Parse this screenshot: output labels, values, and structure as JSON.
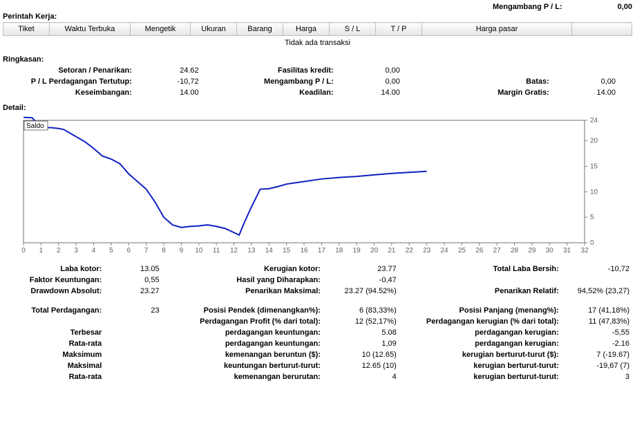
{
  "top": {
    "floatingPL_label": "Mengambang P / L:",
    "floatingPL_value": "0,00"
  },
  "workOrders": {
    "title": "Perintah Kerja:",
    "columns": [
      "Tiket",
      "Waktu Terbuka",
      "Mengetik",
      "Ukuran",
      "Barang",
      "Harga",
      "S / L",
      "T / P",
      "Harga pasar"
    ],
    "noTransactions": "Tidak ada transaksi"
  },
  "summary": {
    "title": "Ringkasan:",
    "rows": [
      [
        {
          "label": "Setoran / Penarikan:",
          "value": "24.62"
        },
        {
          "label": "Fasilitas kredit:",
          "value": "0,00"
        },
        {
          "label": "",
          "value": ""
        }
      ],
      [
        {
          "label": "P / L Perdagangan Tertutup:",
          "value": "-10,72"
        },
        {
          "label": "Mengambang P / L:",
          "value": "0,00"
        },
        {
          "label": "Batas:",
          "value": "0,00"
        }
      ],
      [
        {
          "label": "Keseimbangan:",
          "value": "14.00"
        },
        {
          "label": "Keadilan:",
          "value": "14.00"
        },
        {
          "label": "Margin Gratis:",
          "value": "14.00"
        }
      ]
    ]
  },
  "detailTitle": "Detail:",
  "chart": {
    "legend": "Saldo",
    "x": {
      "min": 0,
      "max": 32,
      "step": 1
    },
    "y": {
      "min": 0,
      "max": 24,
      "step": 5,
      "ticks": [
        0,
        5,
        10,
        15,
        20,
        24
      ]
    },
    "data": [
      [
        0,
        24.6
      ],
      [
        0.5,
        24.5
      ],
      [
        1,
        22.5
      ],
      [
        1.3,
        22.5
      ],
      [
        1.5,
        22.6
      ],
      [
        2,
        22.4
      ],
      [
        2.3,
        22.2
      ],
      [
        3,
        20.8
      ],
      [
        3.5,
        19.8
      ],
      [
        4,
        18.5
      ],
      [
        4.5,
        17.0
      ],
      [
        5,
        16.4
      ],
      [
        5.5,
        15.5
      ],
      [
        6,
        13.5
      ],
      [
        6.5,
        12.0
      ],
      [
        7,
        10.5
      ],
      [
        7.5,
        8.0
      ],
      [
        8,
        5.0
      ],
      [
        8.5,
        3.5
      ],
      [
        9,
        3.0
      ],
      [
        9.5,
        3.2
      ],
      [
        10,
        3.3
      ],
      [
        10.5,
        3.5
      ],
      [
        11,
        3.2
      ],
      [
        11.5,
        2.8
      ],
      [
        12,
        2.0
      ],
      [
        12.3,
        1.5
      ],
      [
        12.6,
        4.0
      ],
      [
        13,
        7.0
      ],
      [
        13.5,
        10.5
      ],
      [
        14,
        10.6
      ],
      [
        14.5,
        11.0
      ],
      [
        15,
        11.5
      ],
      [
        16,
        12.0
      ],
      [
        17,
        12.5
      ],
      [
        18,
        12.8
      ],
      [
        19,
        13.0
      ],
      [
        20,
        13.3
      ],
      [
        21,
        13.6
      ],
      [
        22,
        13.8
      ],
      [
        23,
        14.0
      ]
    ],
    "line_color": "#1020c0",
    "border_color": "#707070",
    "tick_color": "#808080",
    "text_color": "#606060"
  },
  "detail": {
    "rows": [
      [
        {
          "l": "Laba kotor:",
          "v": "13.05"
        },
        {
          "l": "Kerugian kotor:",
          "v": "23.77"
        },
        {
          "l": "Total Laba Bersih:",
          "v": "-10,72"
        }
      ],
      [
        {
          "l": "Faktor Keuntungan:",
          "v": "0,55"
        },
        {
          "l": "Hasil yang Diharapkan:",
          "v": "-0,47"
        },
        {
          "l": "",
          "v": ""
        }
      ],
      [
        {
          "l": "Drawdown Absolut:",
          "v": "23.27"
        },
        {
          "l": "Penarikan Maksimal:",
          "v": "23.27 (94.52%)"
        },
        {
          "l": "Penarikan Relatif:",
          "v": "94,52% (23,27)"
        }
      ],
      "spacer",
      [
        {
          "l": "Total Perdagangan:",
          "v": "23"
        },
        {
          "l": "Posisi Pendek (dimenangkan%):",
          "v": "6 (83,33%)"
        },
        {
          "l": "Posisi Panjang (menang%):",
          "v": "17 (41,18%)"
        }
      ],
      [
        {
          "l": "",
          "v": ""
        },
        {
          "l": "Perdagangan Profit (% dari total):",
          "v": "12 (52,17%)"
        },
        {
          "l": "Perdagangan kerugian (% dari total):",
          "v": "11 (47,83%)"
        }
      ],
      [
        {
          "l": "Terbesar",
          "v": ""
        },
        {
          "l": "perdagangan keuntungan:",
          "v": "5.08"
        },
        {
          "l": "perdagangan kerugian:",
          "v": "-5,55"
        }
      ],
      [
        {
          "l": "Rata-rata",
          "v": ""
        },
        {
          "l": "perdagangan keuntungan:",
          "v": "1,09"
        },
        {
          "l": "perdagangan kerugian:",
          "v": "-2.16"
        }
      ],
      [
        {
          "l": "Maksimum",
          "v": ""
        },
        {
          "l": "kemenangan beruntun ($):",
          "v": "10 (12.65)"
        },
        {
          "l": "kerugian berturut-turut ($):",
          "v": "7 (-19.67)"
        }
      ],
      [
        {
          "l": "Maksimal",
          "v": ""
        },
        {
          "l": "keuntungan berturut-turut:",
          "v": "12.65 (10)"
        },
        {
          "l": "kerugian berturut-turut:",
          "v": "-19,67 (7)"
        }
      ],
      [
        {
          "l": "Rata-rata",
          "v": ""
        },
        {
          "l": "kemenangan berurutan:",
          "v": "4"
        },
        {
          "l": "kerugian berturut-turut:",
          "v": "3"
        }
      ]
    ]
  }
}
